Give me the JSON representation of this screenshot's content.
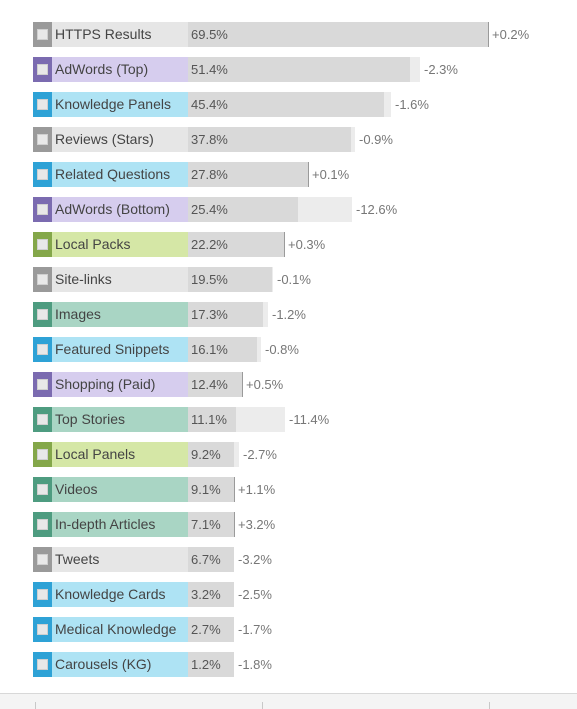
{
  "chart_data": {
    "type": "bar",
    "orientation": "horizontal",
    "xlim": [
      0,
      69.5
    ],
    "category_colors": {
      "gray": {
        "chip": "#9a9a9a",
        "label_bg": "#e6e6e6"
      },
      "purple": {
        "chip": "#7b6bb0",
        "label_bg": "#d6cdee"
      },
      "blue": {
        "chip": "#2ea2d6",
        "label_bg": "#aee3f4"
      },
      "green": {
        "chip": "#84a74a",
        "label_bg": "#d5e7a6"
      },
      "teal": {
        "chip": "#4e9c80",
        "label_bg": "#a9d5c4"
      }
    },
    "rows": [
      {
        "label": "HTTPS Results",
        "value": 69.5,
        "value_text": "69.5%",
        "change": 0.2,
        "change_text": "+0.2%",
        "color": "gray"
      },
      {
        "label": "AdWords (Top)",
        "value": 51.4,
        "value_text": "51.4%",
        "change": -2.3,
        "change_text": "-2.3%",
        "color": "purple"
      },
      {
        "label": "Knowledge Panels",
        "value": 45.4,
        "value_text": "45.4%",
        "change": -1.6,
        "change_text": "-1.6%",
        "color": "blue"
      },
      {
        "label": "Reviews (Stars)",
        "value": 37.8,
        "value_text": "37.8%",
        "change": -0.9,
        "change_text": "-0.9%",
        "color": "gray"
      },
      {
        "label": "Related Questions",
        "value": 27.8,
        "value_text": "27.8%",
        "change": 0.1,
        "change_text": "+0.1%",
        "color": "blue"
      },
      {
        "label": "AdWords (Bottom)",
        "value": 25.4,
        "value_text": "25.4%",
        "change": -12.6,
        "change_text": "-12.6%",
        "color": "purple"
      },
      {
        "label": "Local Packs",
        "value": 22.2,
        "value_text": "22.2%",
        "change": 0.3,
        "change_text": "+0.3%",
        "color": "green"
      },
      {
        "label": "Site-links",
        "value": 19.5,
        "value_text": "19.5%",
        "change": -0.1,
        "change_text": "-0.1%",
        "color": "gray"
      },
      {
        "label": "Images",
        "value": 17.3,
        "value_text": "17.3%",
        "change": -1.2,
        "change_text": "-1.2%",
        "color": "teal"
      },
      {
        "label": "Featured Snippets",
        "value": 16.1,
        "value_text": "16.1%",
        "change": -0.8,
        "change_text": "-0.8%",
        "color": "blue"
      },
      {
        "label": "Shopping (Paid)",
        "value": 12.4,
        "value_text": "12.4%",
        "change": 0.5,
        "change_text": "+0.5%",
        "color": "purple"
      },
      {
        "label": "Top Stories",
        "value": 11.1,
        "value_text": "11.1%",
        "change": -11.4,
        "change_text": "-11.4%",
        "color": "teal"
      },
      {
        "label": "Local Panels",
        "value": 9.2,
        "value_text": "9.2%",
        "change": -2.7,
        "change_text": "-2.7%",
        "color": "green"
      },
      {
        "label": "Videos",
        "value": 9.1,
        "value_text": "9.1%",
        "change": 1.1,
        "change_text": "+1.1%",
        "color": "teal"
      },
      {
        "label": "In-depth Articles",
        "value": 7.1,
        "value_text": "7.1%",
        "change": 3.2,
        "change_text": "+3.2%",
        "color": "teal"
      },
      {
        "label": "Tweets",
        "value": 6.7,
        "value_text": "6.7%",
        "change": -3.2,
        "change_text": "-3.2%",
        "color": "gray"
      },
      {
        "label": "Knowledge Cards",
        "value": 3.2,
        "value_text": "3.2%",
        "change": -2.5,
        "change_text": "-2.5%",
        "color": "blue"
      },
      {
        "label": "Medical Knowledge",
        "value": 2.7,
        "value_text": "2.7%",
        "change": -1.7,
        "change_text": "-1.7%",
        "color": "blue"
      },
      {
        "label": "Carousels (KG)",
        "value": 1.2,
        "value_text": "1.2%",
        "change": -1.8,
        "change_text": "-1.8%",
        "color": "blue"
      }
    ]
  }
}
